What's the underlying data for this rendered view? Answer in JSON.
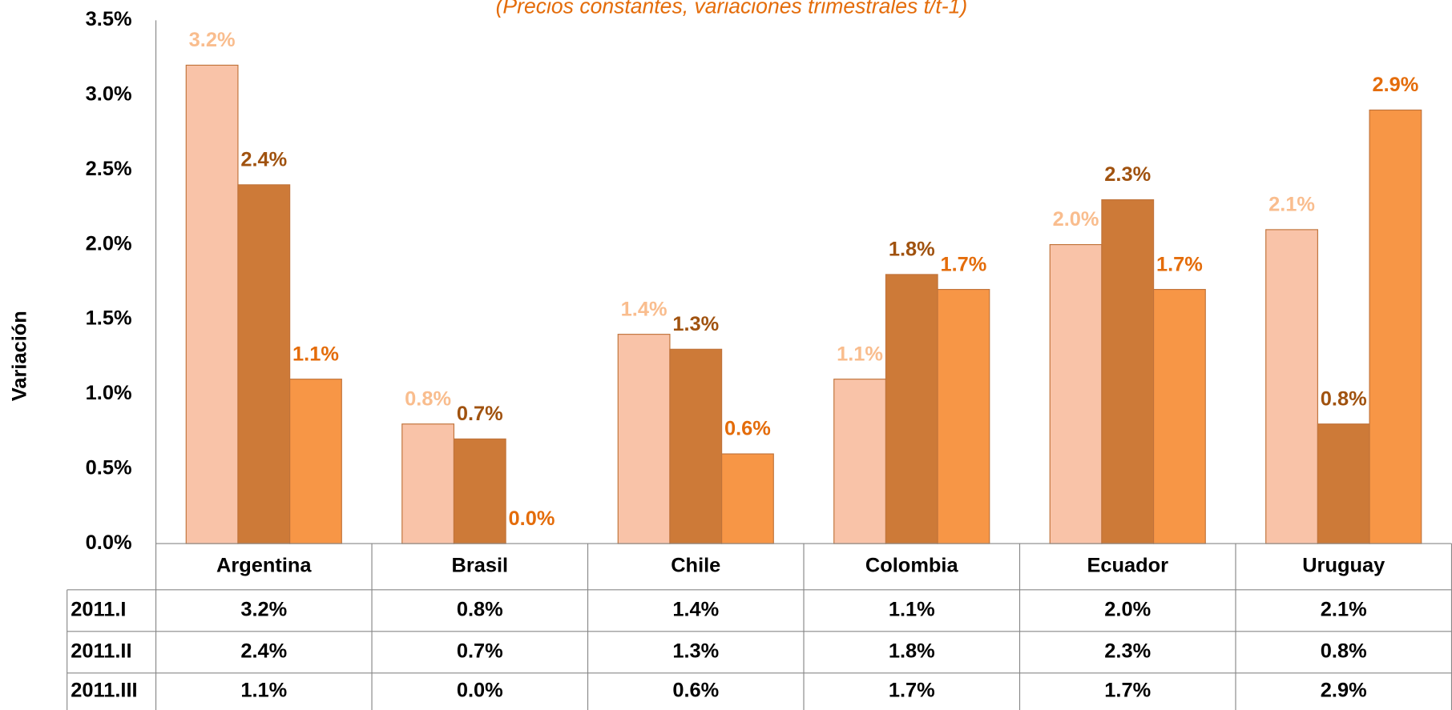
{
  "chart_data": {
    "type": "bar",
    "subtitle": "(Precios constantes, variaciones  trimestrales t/t-1)",
    "y_label": "Variación",
    "categories": [
      "Argentina",
      "Brasil",
      "Chile",
      "Colombia",
      "Ecuador",
      "Uruguay"
    ],
    "series": [
      {
        "name": "2011.I",
        "color": "#f9c3a8",
        "label_color": "#f9bd8e",
        "values": [
          3.2,
          0.8,
          1.4,
          1.1,
          2.0,
          2.1
        ],
        "value_labels": [
          "3.2%",
          "0.8%",
          "1.4%",
          "1.1%",
          "2.0%",
          "2.1%"
        ]
      },
      {
        "name": "2011.II",
        "color": "#cd7a38",
        "label_color": "#a0520f",
        "values": [
          2.4,
          0.7,
          1.3,
          1.8,
          2.3,
          0.8
        ],
        "value_labels": [
          "2.4%",
          "0.7%",
          "1.3%",
          "1.8%",
          "2.3%",
          "0.8%"
        ]
      },
      {
        "name": "2011.III",
        "color": "#f79646",
        "label_color": "#e46c0a",
        "values": [
          1.1,
          0.0,
          0.6,
          1.7,
          1.7,
          2.9
        ],
        "value_labels": [
          "1.1%",
          "0.0%",
          "0.6%",
          "1.7%",
          "1.7%",
          "2.9%"
        ]
      }
    ],
    "ylim": [
      0,
      3.5
    ],
    "yticks": [
      {
        "value": 0,
        "label": "0.0%"
      },
      {
        "value": 0.5,
        "label": "0.5%"
      },
      {
        "value": 1,
        "label": "1.0%"
      },
      {
        "value": 1.5,
        "label": "1.5%"
      },
      {
        "value": 2,
        "label": "2.0%"
      },
      {
        "value": 2.5,
        "label": "2.5%"
      },
      {
        "value": 3,
        "label": "3.0%"
      },
      {
        "value": 3.5,
        "label": "3.5%"
      }
    ],
    "grid": false,
    "data_table": true
  }
}
